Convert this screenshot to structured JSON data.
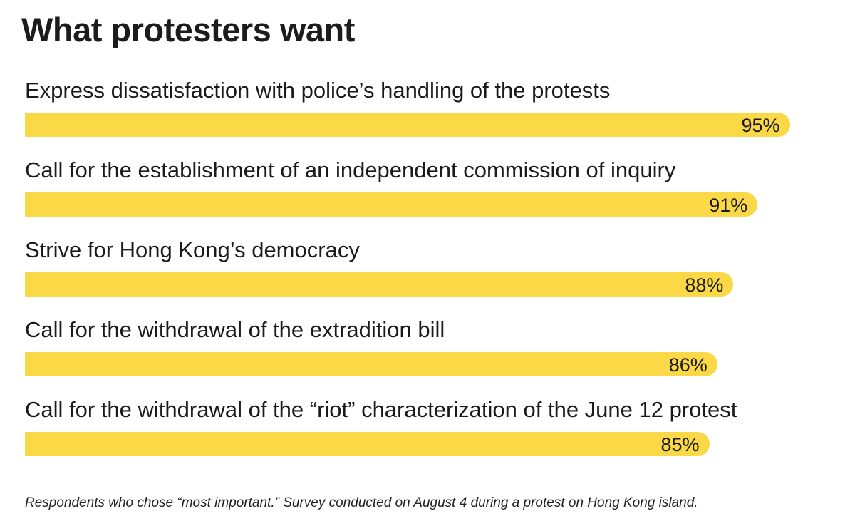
{
  "chart_data": {
    "type": "bar",
    "orientation": "horizontal",
    "title": "What protesters want",
    "categories": [
      "Express dissatisfaction with police’s handling of the protests",
      "Call for the establishment of an independent commission of inquiry",
      "Strive for Hong Kong’s democracy",
      "Call for the withdrawal of the extradition bill",
      "Call for the withdrawal of the “riot” characterization of the June 12 protest"
    ],
    "values": [
      95,
      91,
      88,
      86,
      85
    ],
    "value_labels": [
      "95%",
      "91%",
      "88%",
      "86%",
      "85%"
    ],
    "unit": "%",
    "xlim": [
      0,
      100
    ],
    "bar_color": "#fad846",
    "xlabel": "",
    "ylabel": "",
    "grid": false
  },
  "footnote": "Respondents who chose “most important.” Survey conducted on August 4 during a protest on Hong Kong island."
}
